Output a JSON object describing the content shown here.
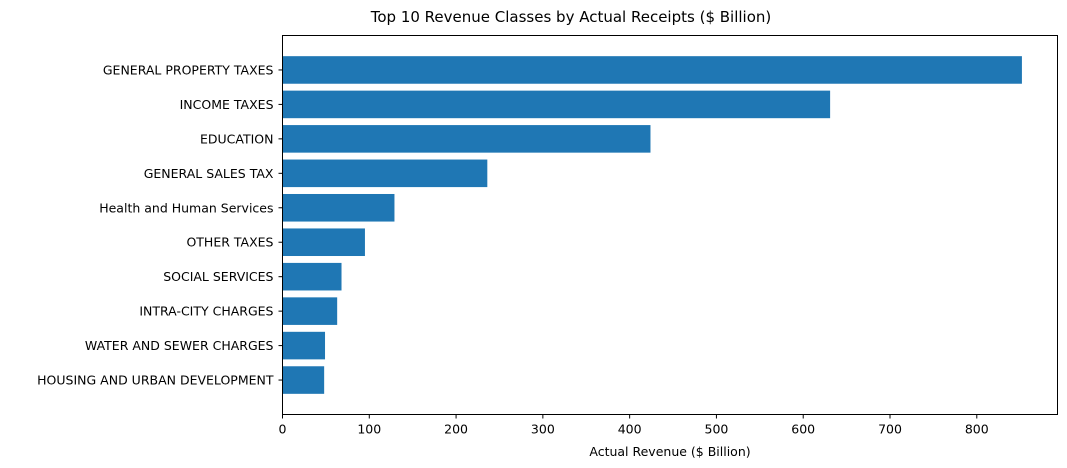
{
  "chart_data": {
    "type": "bar",
    "orientation": "horizontal",
    "title": "Top 10 Revenue Classes by Actual Receipts ($ Billion)",
    "xlabel": "Actual Revenue ($ Billion)",
    "ylabel": "",
    "categories": [
      "GENERAL PROPERTY TAXES",
      "INCOME TAXES",
      "EDUCATION",
      "GENERAL SALES TAX",
      "Health and Human Services",
      "OTHER TAXES",
      "SOCIAL SERVICES",
      "INTRA-CITY CHARGES",
      "WATER AND SEWER CHARGES",
      "HOUSING AND URBAN DEVELOPMENT"
    ],
    "values": [
      852,
      631,
      424,
      236,
      129,
      95,
      68,
      63,
      49,
      48
    ],
    "xlim": [
      0,
      893
    ],
    "xticks": [
      0,
      100,
      200,
      300,
      400,
      500,
      600,
      700,
      800
    ],
    "xtick_labels": [
      "0",
      "100",
      "200",
      "300",
      "400",
      "500",
      "600",
      "700",
      "800"
    ],
    "grid": false,
    "bar_color": "#1f77b4"
  }
}
